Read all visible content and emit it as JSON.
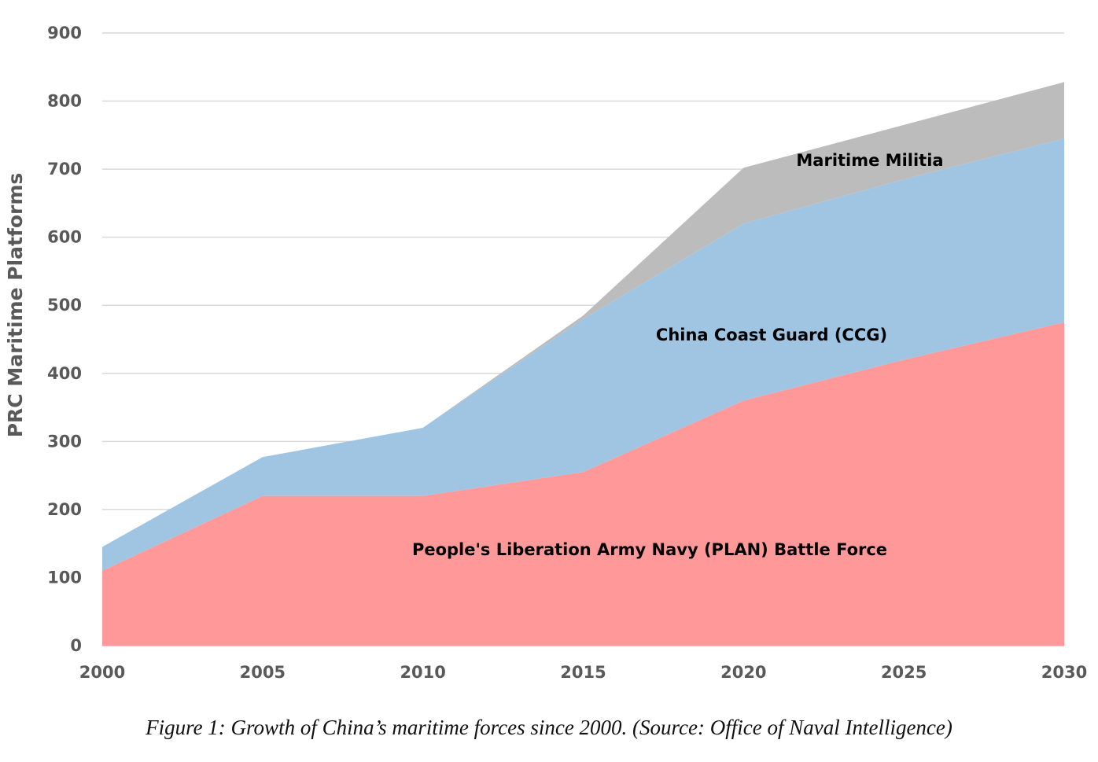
{
  "chart_data": {
    "type": "area",
    "stacked": true,
    "x": [
      2000,
      2005,
      2010,
      2015,
      2020,
      2025,
      2030
    ],
    "series": [
      {
        "name": "People's Liberation Army Navy (PLAN) Battle Force",
        "values": [
          110,
          220,
          220,
          255,
          360,
          420,
          475
        ],
        "color": "#ff9999"
      },
      {
        "name": "China Coast Guard (CCG)",
        "values": [
          35,
          57,
          100,
          225,
          260,
          265,
          270
        ],
        "color": "#9fc5e3"
      },
      {
        "name": "Maritime Militia",
        "values": [
          0,
          0,
          0,
          5,
          82,
          80,
          83
        ],
        "color": "#bcbcbc"
      }
    ],
    "ylabel": "PRC Maritime Platforms",
    "xlabel": "",
    "ylim": [
      0,
      900
    ],
    "yticks": [
      0,
      100,
      200,
      300,
      400,
      500,
      600,
      700,
      800,
      900
    ],
    "xticks": [
      2000,
      2005,
      2010,
      2015,
      2020,
      2025,
      2030
    ],
    "grid": true,
    "legend": "labels inside areas"
  },
  "caption": "Figure 1: Growth of China’s maritime forces since 2000. (Source: Office of Naval Intelligence)"
}
